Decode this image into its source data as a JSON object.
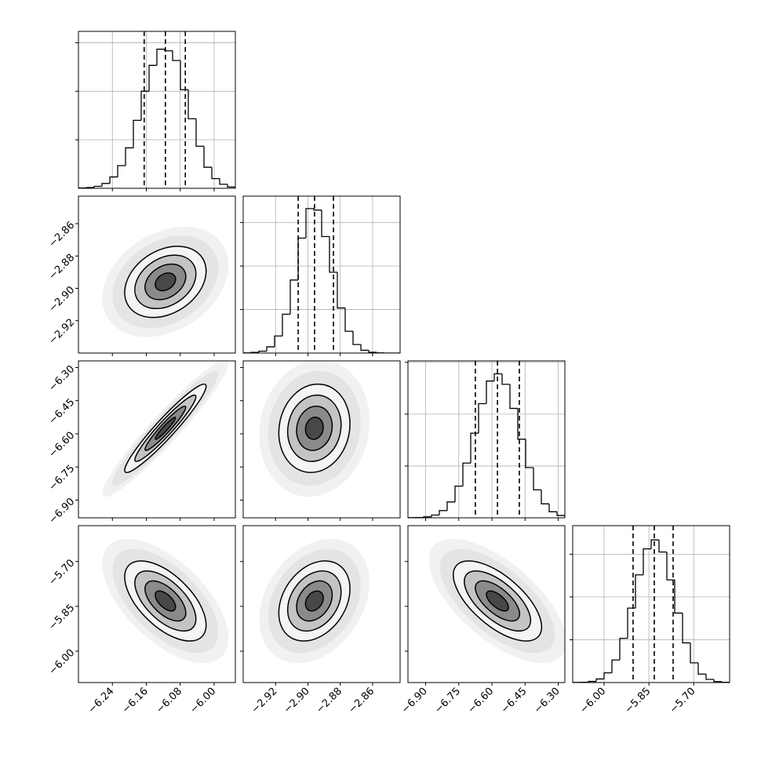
{
  "chart_data": {
    "type": "corner",
    "grid": true,
    "color": "#000000",
    "sigma_levels": [
      0.5,
      1,
      1.5,
      2
    ],
    "correlations": [
      [
        0.3
      ],
      [
        0.95,
        0.1
      ],
      [
        -0.6,
        0.3,
        -0.65
      ]
    ],
    "parameters": [
      {
        "mean": -6.115,
        "sd": 0.048,
        "lim": [
          -6.32,
          -5.95
        ],
        "ticks": [
          {
            "value": -6.24,
            "label": "−6.24"
          },
          {
            "value": -6.16,
            "label": "−6.16"
          },
          {
            "value": -6.08,
            "label": "−6.08"
          },
          {
            "value": -6.0,
            "label": "−6.00"
          }
        ],
        "quantiles": [
          -6.165,
          -6.115,
          -6.068
        ],
        "bins": [
          -6.32,
          -6.3015,
          -6.283,
          -6.2645,
          -6.246,
          -6.2275,
          -6.209,
          -6.1905,
          -6.172,
          -6.1535,
          -6.135,
          -6.1165,
          -6.098,
          -6.0795,
          -6.061,
          -6.0425,
          -6.024,
          -6.0055,
          -5.987,
          -5.9685,
          -5.95
        ],
        "counts": [
          2,
          5,
          12,
          30,
          70,
          140,
          250,
          420,
          600,
          760,
          860,
          850,
          790,
          610,
          430,
          260,
          130,
          60,
          25,
          8
        ],
        "hist_ylim": [
          0,
          970
        ],
        "hist_yticks": [
          300,
          600,
          900
        ]
      },
      {
        "mean": -2.896,
        "sd": 0.011,
        "lim": [
          -2.94,
          -2.843
        ],
        "ticks": [
          {
            "value": -2.92,
            "label": "−2.92"
          },
          {
            "value": -2.9,
            "label": "−2.90"
          },
          {
            "value": -2.88,
            "label": "−2.88"
          },
          {
            "value": -2.86,
            "label": "−2.86"
          }
        ],
        "quantiles": [
          -2.906,
          -2.8959,
          -2.8842
        ],
        "bins": [
          -2.94,
          -2.93515,
          -2.9303,
          -2.92545,
          -2.9206,
          -2.91575,
          -2.9109,
          -2.90605,
          -2.9012,
          -2.89635,
          -2.8915,
          -2.88665,
          -2.8818,
          -2.87695,
          -2.8721,
          -2.86725,
          -2.8624,
          -2.85755,
          -2.8527,
          -2.84785,
          -2.843
        ],
        "counts": [
          1,
          4,
          12,
          40,
          110,
          250,
          470,
          740,
          930,
          920,
          750,
          520,
          290,
          140,
          55,
          18,
          5,
          1,
          0,
          0
        ],
        "hist_ylim": [
          0,
          1010
        ],
        "hist_yticks": [
          280,
          560,
          840
        ]
      },
      {
        "mean": -6.575,
        "sd": 0.1,
        "lim": [
          -6.98,
          -6.27
        ],
        "ticks": [
          {
            "value": -6.9,
            "label": "−6.90"
          },
          {
            "value": -6.75,
            "label": "−6.75"
          },
          {
            "value": -6.6,
            "label": "−6.60"
          },
          {
            "value": -6.45,
            "label": "−6.45"
          },
          {
            "value": -6.3,
            "label": "−6.30"
          }
        ],
        "quantiles": [
          -6.675,
          -6.575,
          -6.476
        ],
        "bins": [
          -6.98,
          -6.9445,
          -6.909,
          -6.8735,
          -6.838,
          -6.8025,
          -6.767,
          -6.7315,
          -6.696,
          -6.6605,
          -6.625,
          -6.5895,
          -6.554,
          -6.5185,
          -6.483,
          -6.4475,
          -6.412,
          -6.3765,
          -6.341,
          -6.3055,
          -6.27
        ],
        "counts": [
          1,
          2,
          7,
          19,
          50,
          110,
          220,
          380,
          588,
          793,
          950,
          1000,
          927,
          760,
          546,
          349,
          194,
          97,
          42,
          16
        ],
        "hist_ylim": [
          0,
          1090
        ],
        "hist_yticks": [
          360,
          720,
          1080
        ]
      },
      {
        "mean": -5.832,
        "sd": 0.067,
        "lim": [
          -6.105,
          -5.58
        ],
        "ticks": [
          {
            "value": -6.0,
            "label": "−6.00"
          },
          {
            "value": -5.85,
            "label": "−5.85"
          },
          {
            "value": -5.7,
            "label": "−5.70"
          }
        ],
        "quantiles": [
          -5.903,
          -5.832,
          -5.769
        ],
        "bins": [
          -6.105,
          -6.07875,
          -6.0525,
          -6.02625,
          -6.0,
          -5.97375,
          -5.9475,
          -5.92125,
          -5.895,
          -5.86875,
          -5.8425,
          -5.81625,
          -5.79,
          -5.76375,
          -5.7375,
          -5.71125,
          -5.685,
          -5.65875,
          -5.6325,
          -5.60625,
          -5.58
        ],
        "counts": [
          1,
          2,
          8,
          25,
          68,
          158,
          310,
          522,
          755,
          937,
          1000,
          915,
          720,
          487,
          278,
          138,
          59,
          22,
          7,
          2
        ],
        "hist_ylim": [
          0,
          1100
        ],
        "hist_yticks": [
          300,
          600,
          900
        ]
      }
    ]
  }
}
